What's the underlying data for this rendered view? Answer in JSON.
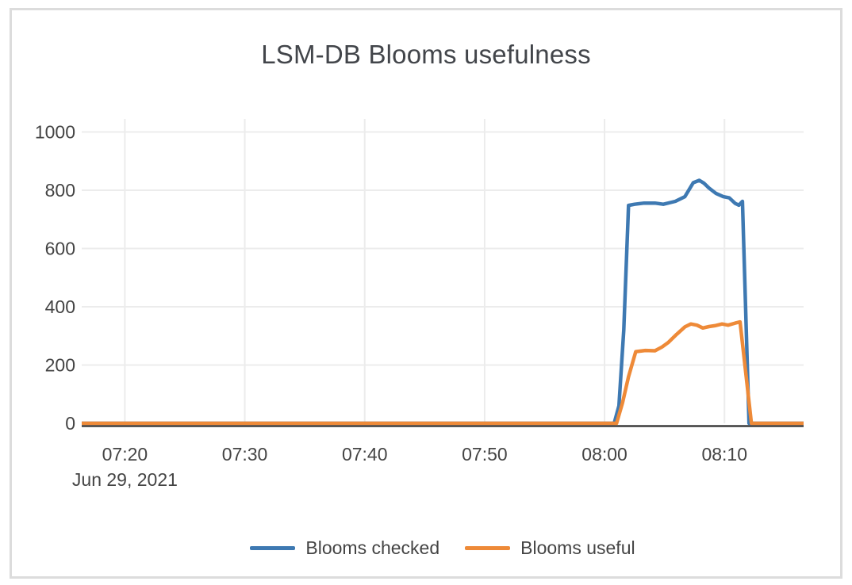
{
  "chart_data": {
    "type": "line",
    "title": "LSM-DB Blooms usefulness",
    "x_axis": {
      "date_label": "Jun 29, 2021",
      "range_minutes": [
        16.4,
        76.6
      ],
      "ticks": [
        {
          "t": 20,
          "label": "07:20"
        },
        {
          "t": 30,
          "label": "07:30"
        },
        {
          "t": 40,
          "label": "07:40"
        },
        {
          "t": 50,
          "label": "07:50"
        },
        {
          "t": 60,
          "label": "08:00"
        },
        {
          "t": 70,
          "label": "08:10"
        }
      ]
    },
    "y_axis": {
      "range": [
        0,
        1045
      ],
      "ticks": [
        {
          "v": 0,
          "label": "0"
        },
        {
          "v": 200,
          "label": "200"
        },
        {
          "v": 400,
          "label": "400"
        },
        {
          "v": 600,
          "label": "600"
        },
        {
          "v": 800,
          "label": "800"
        },
        {
          "v": 1000,
          "label": "1000"
        }
      ]
    },
    "grid": {
      "line_color": "#ececec",
      "zero_line_color": "#3b3b3b"
    },
    "legend_position": "bottom-center",
    "series": [
      {
        "name": "Blooms checked",
        "color": "#3e79b2",
        "points": [
          [
            16.4,
            0
          ],
          [
            60.8,
            0
          ],
          [
            61.2,
            60
          ],
          [
            61.6,
            320
          ],
          [
            62.0,
            748
          ],
          [
            62.5,
            752
          ],
          [
            63.3,
            756
          ],
          [
            64.2,
            756
          ],
          [
            64.9,
            752
          ],
          [
            65.9,
            762
          ],
          [
            66.7,
            778
          ],
          [
            67.4,
            826
          ],
          [
            67.9,
            834
          ],
          [
            68.3,
            824
          ],
          [
            68.7,
            808
          ],
          [
            69.3,
            789
          ],
          [
            69.9,
            778
          ],
          [
            70.4,
            774
          ],
          [
            70.9,
            755
          ],
          [
            71.2,
            749
          ],
          [
            71.5,
            762
          ],
          [
            72.05,
            0
          ],
          [
            76.6,
            0
          ]
        ]
      },
      {
        "name": "Blooms useful",
        "color": "#ee8a38",
        "points": [
          [
            16.4,
            0
          ],
          [
            61.0,
            0
          ],
          [
            61.5,
            70
          ],
          [
            62.0,
            160
          ],
          [
            62.6,
            246
          ],
          [
            63.4,
            250
          ],
          [
            64.2,
            249
          ],
          [
            64.8,
            262
          ],
          [
            65.3,
            277
          ],
          [
            66.0,
            305
          ],
          [
            66.7,
            331
          ],
          [
            67.2,
            341
          ],
          [
            67.7,
            337
          ],
          [
            68.2,
            327
          ],
          [
            68.7,
            332
          ],
          [
            69.2,
            335
          ],
          [
            69.8,
            341
          ],
          [
            70.3,
            337
          ],
          [
            70.9,
            344
          ],
          [
            71.3,
            348
          ],
          [
            72.25,
            0
          ],
          [
            76.6,
            0
          ]
        ]
      }
    ]
  }
}
